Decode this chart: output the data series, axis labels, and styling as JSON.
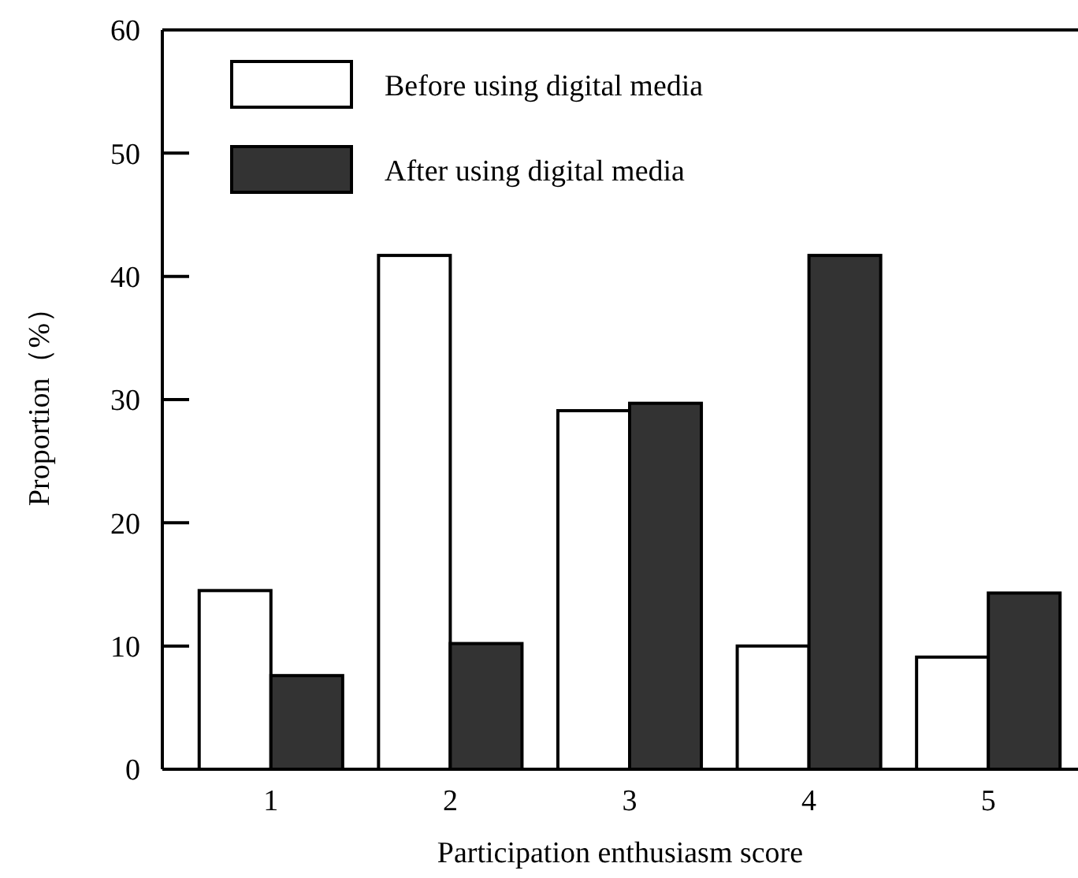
{
  "chart_data": {
    "type": "bar",
    "xlabel": "Participation enthusiasm score",
    "ylabel": "Proportion（%）",
    "categories": [
      "1",
      "2",
      "3",
      "4",
      "5"
    ],
    "series": [
      {
        "name": "Before using digital media",
        "color": "#ffffff",
        "values": [
          14.5,
          41.7,
          29.1,
          10.0,
          9.1
        ]
      },
      {
        "name": "After using digital media",
        "color": "#333333",
        "values": [
          7.6,
          10.2,
          29.7,
          41.7,
          14.3
        ]
      }
    ],
    "ylim": [
      0,
      60
    ],
    "yticks": [
      0,
      10,
      20,
      30,
      40,
      50,
      60
    ],
    "grid": false,
    "legend": "top left"
  }
}
